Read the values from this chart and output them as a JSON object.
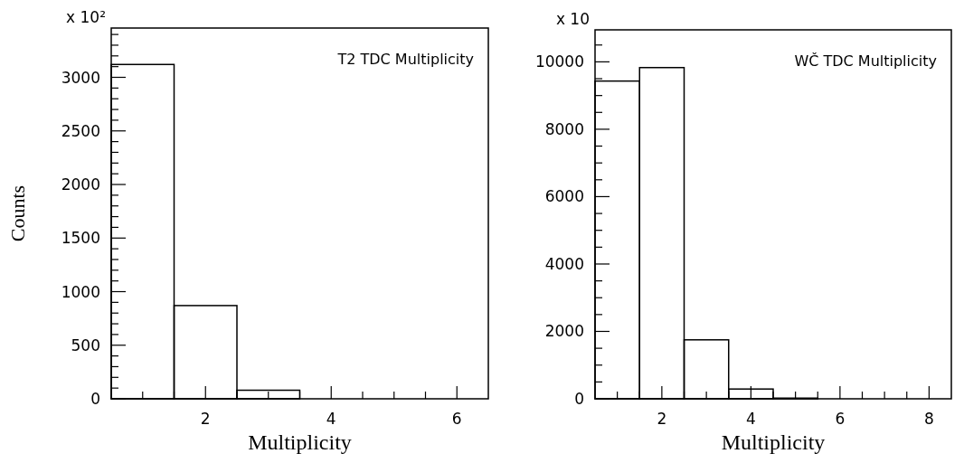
{
  "chart_data": [
    {
      "type": "histogram",
      "title": "T2 TDC Multiplicity",
      "xlabel": "Multiplicity",
      "ylabel": "Counts",
      "annotations": [
        "x 10²"
      ],
      "bins": [
        0.5,
        1.5,
        2.5,
        3.5,
        4.5,
        5.5,
        6.5
      ],
      "values": [
        3120,
        870,
        80,
        0,
        0,
        0
      ],
      "color": "#000000",
      "xlim": [
        0.5,
        6.5
      ],
      "xticks": [
        {
          "value": 1,
          "label": null
        },
        {
          "value": 1.5,
          "label": null
        },
        2,
        {
          "value": 2.5,
          "label": null
        },
        {
          "value": 3,
          "label": null
        },
        {
          "value": 3.5,
          "label": null
        },
        4,
        {
          "value": 4.5,
          "label": null
        },
        {
          "value": 5,
          "label": null
        },
        {
          "value": 5.5,
          "label": null
        },
        6
      ],
      "ylim": [
        0,
        3460
      ],
      "yticks": [
        0,
        {
          "value": 100,
          "label": null
        },
        {
          "value": 200,
          "label": null
        },
        {
          "value": 300,
          "label": null
        },
        {
          "value": 400,
          "label": null
        },
        500,
        {
          "value": 600,
          "label": null
        },
        {
          "value": 700,
          "label": null
        },
        {
          "value": 800,
          "label": null
        },
        {
          "value": 900,
          "label": null
        },
        1000,
        {
          "value": 1100,
          "label": null
        },
        {
          "value": 1200,
          "label": null
        },
        {
          "value": 1300,
          "label": null
        },
        {
          "value": 1400,
          "label": null
        },
        1500,
        {
          "value": 1600,
          "label": null
        },
        {
          "value": 1700,
          "label": null
        },
        {
          "value": 1800,
          "label": null
        },
        {
          "value": 1900,
          "label": null
        },
        2000,
        {
          "value": 2100,
          "label": null
        },
        {
          "value": 2200,
          "label": null
        },
        {
          "value": 2300,
          "label": null
        },
        {
          "value": 2400,
          "label": null
        },
        2500,
        {
          "value": 2600,
          "label": null
        },
        {
          "value": 2700,
          "label": null
        },
        {
          "value": 2800,
          "label": null
        },
        {
          "value": 2900,
          "label": null
        },
        3000,
        {
          "value": 3100,
          "label": null
        },
        {
          "value": 3200,
          "label": null
        },
        {
          "value": 3300,
          "label": null
        },
        {
          "value": 3400,
          "label": null
        }
      ],
      "grid": false
    },
    {
      "type": "histogram",
      "title": "WČ TDC Multiplicity",
      "xlabel": "Multiplicity",
      "annotations": [
        "x 10"
      ],
      "bins": [
        0.5,
        1.5,
        2.5,
        3.5,
        4.5,
        5.5,
        6.5,
        7.5,
        8.5
      ],
      "values": [
        9430,
        9830,
        1750,
        290,
        20,
        0,
        0,
        0
      ],
      "color": "#000000",
      "xlim": [
        0.5,
        8.5
      ],
      "xticks": [
        {
          "value": 1,
          "label": null
        },
        {
          "value": 1.5,
          "label": null
        },
        2,
        {
          "value": 2.5,
          "label": null
        },
        {
          "value": 3,
          "label": null
        },
        {
          "value": 3.5,
          "label": null
        },
        4,
        {
          "value": 4.5,
          "label": null
        },
        {
          "value": 5,
          "label": null
        },
        {
          "value": 5.5,
          "label": null
        },
        6,
        {
          "value": 6.5,
          "label": null
        },
        {
          "value": 7,
          "label": null
        },
        {
          "value": 7.5,
          "label": null
        },
        8
      ],
      "ylim": [
        0,
        10950
      ],
      "yticks": [
        0,
        {
          "value": 500,
          "label": null
        },
        {
          "value": 1000,
          "label": null
        },
        {
          "value": 1500,
          "label": null
        },
        2000,
        {
          "value": 2500,
          "label": null
        },
        {
          "value": 3000,
          "label": null
        },
        {
          "value": 3500,
          "label": null
        },
        4000,
        {
          "value": 4500,
          "label": null
        },
        {
          "value": 5000,
          "label": null
        },
        {
          "value": 5500,
          "label": null
        },
        6000,
        {
          "value": 6500,
          "label": null
        },
        {
          "value": 7000,
          "label": null
        },
        {
          "value": 7500,
          "label": null
        },
        8000,
        {
          "value": 8500,
          "label": null
        },
        {
          "value": 9000,
          "label": null
        },
        {
          "value": 9500,
          "label": null
        },
        10000,
        {
          "value": 10500,
          "label": null
        }
      ],
      "grid": false
    }
  ]
}
